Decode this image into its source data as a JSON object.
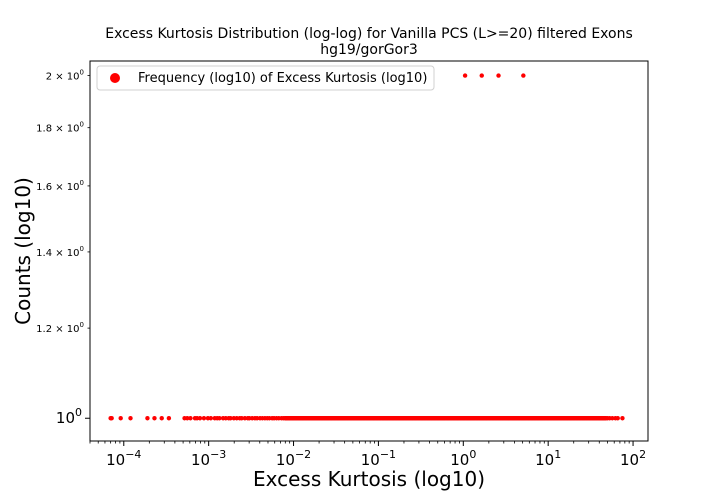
{
  "chart_data": {
    "type": "scatter",
    "title": "Excess Kurtosis Distribution (log-log) for Vanilla PCS (L>=20) filtered Exons",
    "subtitle": "hg19/gorGor3",
    "xlabel": "Excess Kurtosis (log10)",
    "ylabel": "Counts (log10)",
    "x_scale": "log",
    "y_scale": "log",
    "xlim": [
      4e-05,
      150
    ],
    "ylim": [
      0.955,
      2.06
    ],
    "x_ticks": [
      {
        "value": 0.0001,
        "base": "10",
        "exp": "−4"
      },
      {
        "value": 0.001,
        "base": "10",
        "exp": "−3"
      },
      {
        "value": 0.01,
        "base": "10",
        "exp": "−2"
      },
      {
        "value": 0.1,
        "base": "10",
        "exp": "−1"
      },
      {
        "value": 1,
        "base": "10",
        "exp": "0"
      },
      {
        "value": 10,
        "base": "10",
        "exp": "1"
      },
      {
        "value": 100,
        "base": "10",
        "exp": "2"
      }
    ],
    "y_ticks_major": [
      {
        "value": 1,
        "base": "10",
        "exp": "0"
      }
    ],
    "y_ticks_minor": [
      {
        "value": 1.2,
        "mant": "1.2 × 10",
        "exp": "0"
      },
      {
        "value": 1.4,
        "mant": "1.4 × 10",
        "exp": "0"
      },
      {
        "value": 1.6,
        "mant": "1.6 × 10",
        "exp": "0"
      },
      {
        "value": 1.8,
        "mant": "1.8 × 10",
        "exp": "0"
      },
      {
        "value": 2,
        "mant": "2 × 10",
        "exp": "0"
      }
    ],
    "legend": {
      "position": "upper-left",
      "entries": [
        "Frequency (log10) of Excess Kurtosis (log10)"
      ]
    },
    "grid": false,
    "color": "#ff0000",
    "series": [
      {
        "name": "Frequency (log10) of Excess Kurtosis (log10)",
        "points_count2": [
          1.05,
          1.65,
          2.6,
          5.1
        ],
        "points_count1_sparse": [
          7e-05,
          7.2e-05,
          9.2e-05,
          0.00012,
          0.00019,
          0.00023,
          0.00028,
          0.00034,
          0.00052,
          0.00056,
          0.00061,
          0.00069,
          0.00073,
          0.00079,
          0.00088,
          0.00098,
          0.00106,
          0.00118,
          0.00126,
          0.00134,
          0.00148,
          0.00159,
          0.00172,
          0.00181,
          0.00198,
          0.00214,
          0.00232,
          0.00245,
          0.00267,
          0.00289,
          0.00302,
          0.00326,
          0.00351,
          0.00372,
          0.00403,
          0.0043,
          0.0046,
          0.0049,
          0.0052,
          0.0056,
          0.0059,
          0.0063,
          0.0067,
          0.0072,
          0.0076,
          0.008
        ],
        "points_count1_dense_range": [
          0.008,
          48
        ],
        "points_count1_tail": [
          50,
          53,
          57,
          62,
          66,
          75
        ]
      }
    ]
  }
}
